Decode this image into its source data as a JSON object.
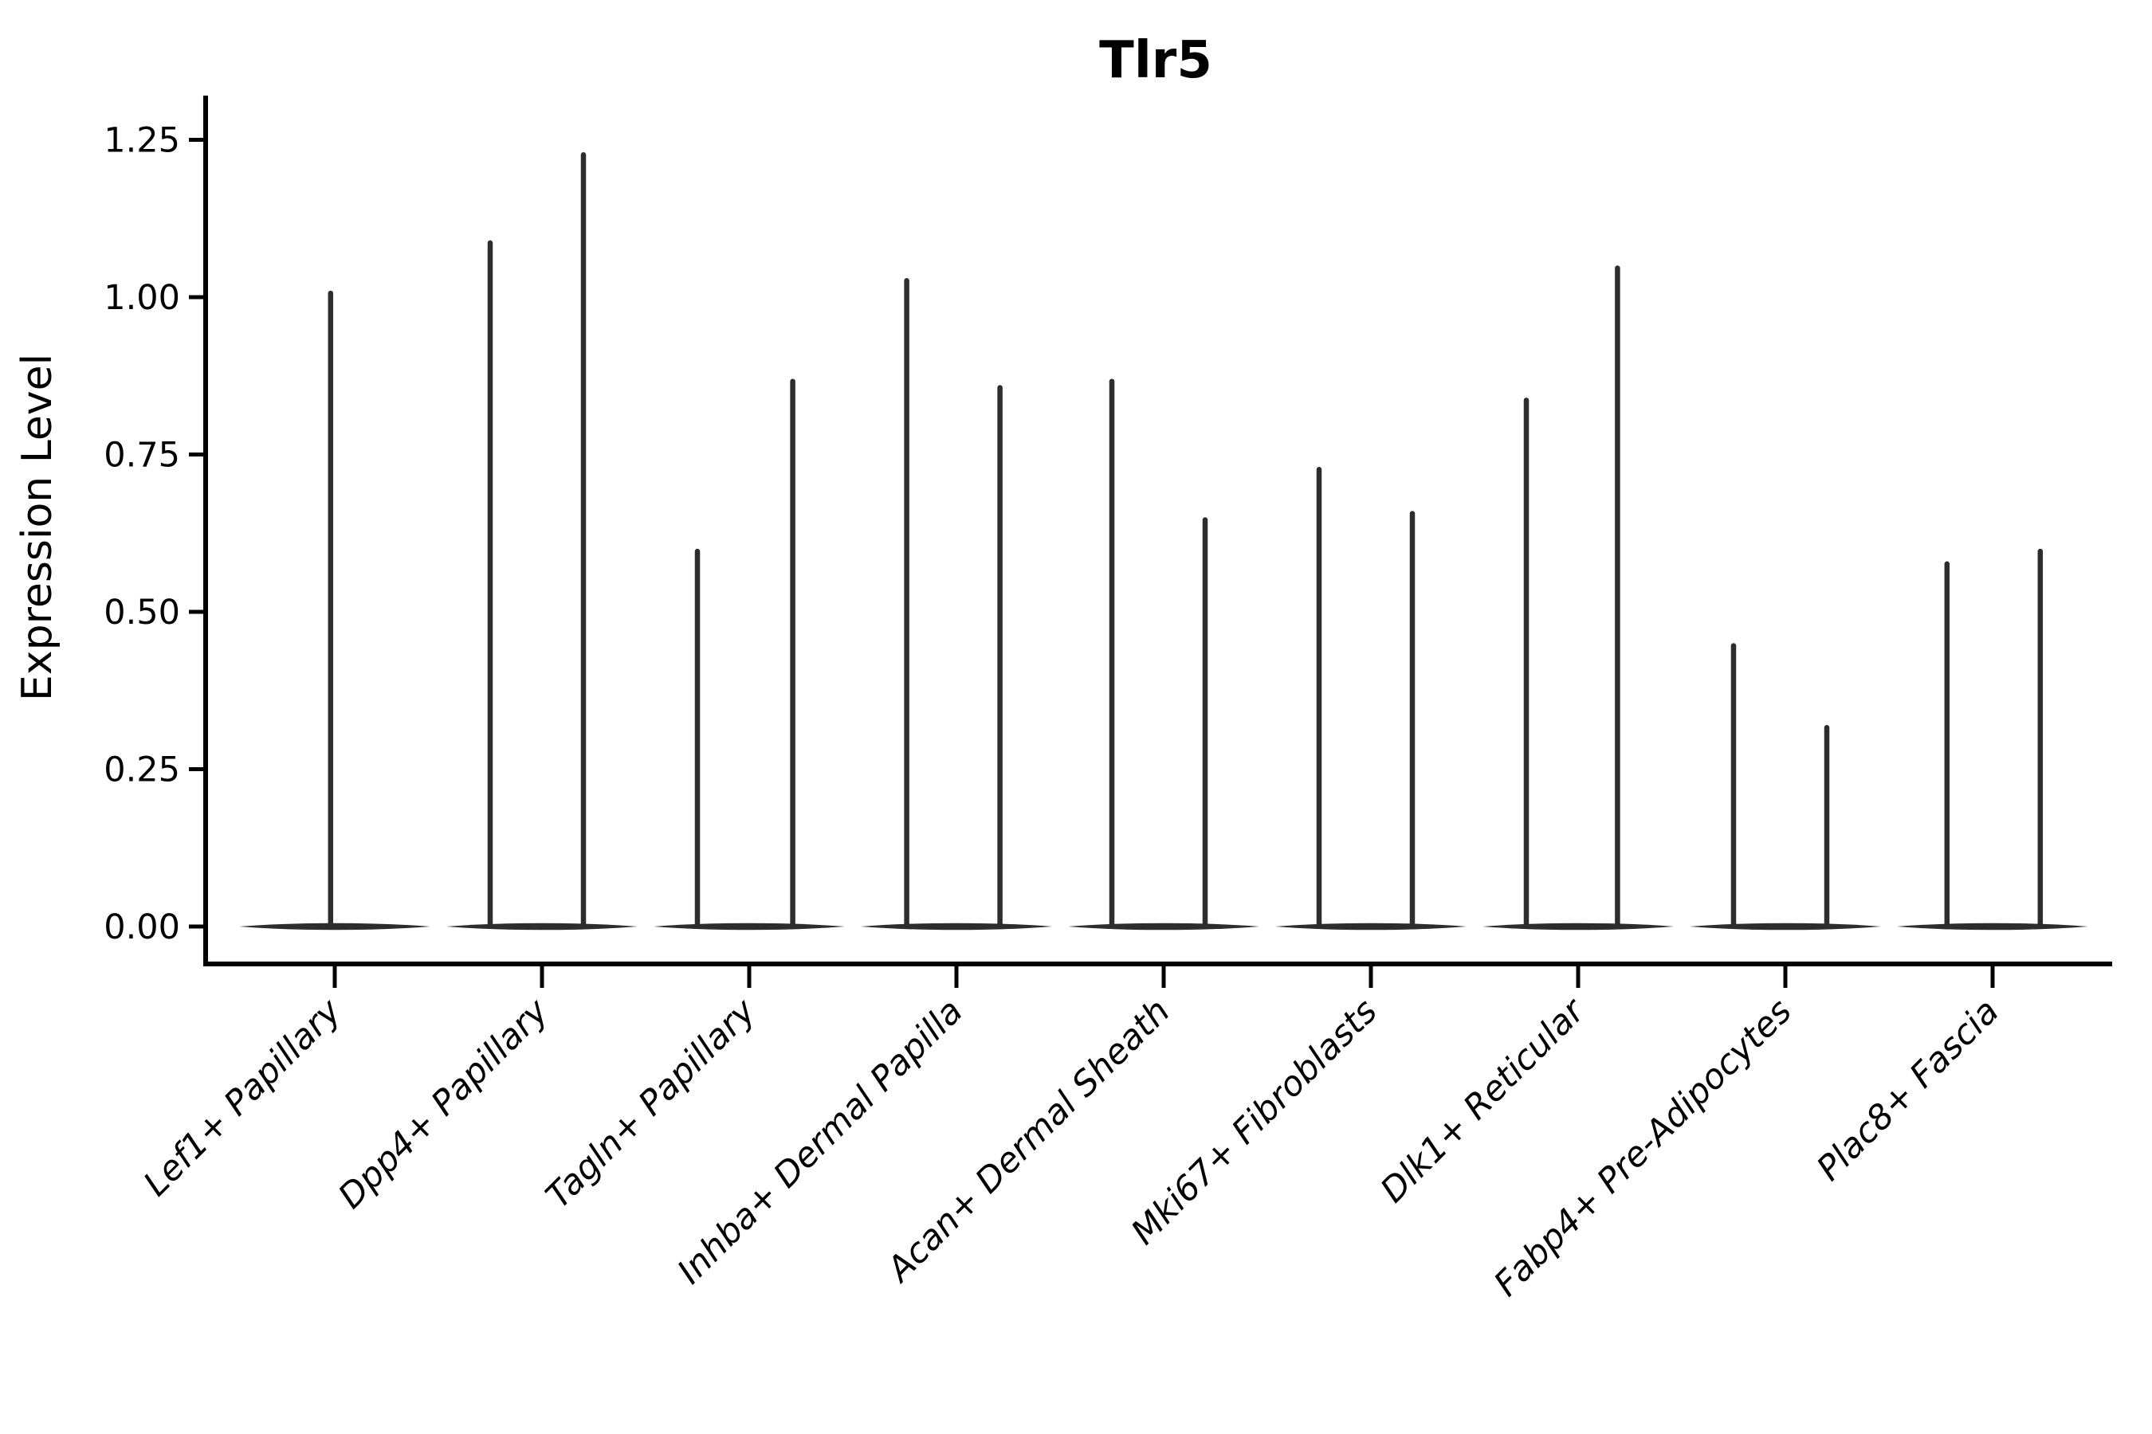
{
  "chart_data": {
    "type": "violin",
    "title": "Tlr5",
    "xlabel": "",
    "ylabel": "Expression Level",
    "yticks": [
      "0.00",
      "0.25",
      "0.50",
      "0.75",
      "1.00",
      "1.25"
    ],
    "ylim": [
      -0.06,
      1.32
    ],
    "grid": false,
    "legend": "none",
    "categories": [
      "Lef1+ Papillary",
      "Dpp4+ Papillary",
      "Tagln+ Papillary",
      "Inhba+ Dermal Papilla",
      "Acan+ Dermal Sheath",
      "Mki67+ Fibroblasts",
      "Dlk1+ Reticular",
      "Fabp4+ Pre-Adipocytes",
      "Plac8+ Fascia"
    ],
    "series": [
      {
        "category": "Lef1+ Papillary",
        "violins": [
          {
            "position_offset": -0.02,
            "max_expression": 1.01
          }
        ]
      },
      {
        "category": "Dpp4+ Papillary",
        "violins": [
          {
            "position_offset": -0.25,
            "max_expression": 1.09
          },
          {
            "position_offset": 0.2,
            "max_expression": 1.23
          }
        ]
      },
      {
        "category": "Tagln+ Papillary",
        "violins": [
          {
            "position_offset": -0.25,
            "max_expression": 0.6
          },
          {
            "position_offset": 0.21,
            "max_expression": 0.87
          }
        ]
      },
      {
        "category": "Inhba+ Dermal Papilla",
        "violins": [
          {
            "position_offset": -0.24,
            "max_expression": 1.03
          },
          {
            "position_offset": 0.21,
            "max_expression": 0.86
          }
        ]
      },
      {
        "category": "Acan+ Dermal Sheath",
        "violins": [
          {
            "position_offset": -0.25,
            "max_expression": 0.87
          },
          {
            "position_offset": 0.2,
            "max_expression": 0.65
          }
        ]
      },
      {
        "category": "Mki67+ Fibroblasts",
        "violins": [
          {
            "position_offset": -0.25,
            "max_expression": 0.73
          },
          {
            "position_offset": 0.2,
            "max_expression": 0.66
          }
        ]
      },
      {
        "category": "Dlk1+ Reticular",
        "violins": [
          {
            "position_offset": -0.25,
            "max_expression": 0.84
          },
          {
            "position_offset": 0.19,
            "max_expression": 1.05
          }
        ]
      },
      {
        "category": "Fabp4+ Pre-Adipocytes",
        "violins": [
          {
            "position_offset": -0.25,
            "max_expression": 0.45
          },
          {
            "position_offset": 0.2,
            "max_expression": 0.32
          }
        ]
      },
      {
        "category": "Plac8+ Fascia",
        "violins": [
          {
            "position_offset": -0.22,
            "max_expression": 0.58
          },
          {
            "position_offset": 0.23,
            "max_expression": 0.6
          }
        ]
      }
    ],
    "baseline_value": 0.0,
    "colors": {
      "violin_line": "#2d2d2d",
      "spine": "#000000",
      "background": "#ffffff"
    }
  }
}
